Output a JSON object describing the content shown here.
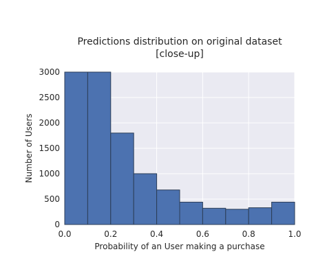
{
  "chart_data": {
    "type": "bar",
    "title_lines": [
      "Predictions distribution on original dataset",
      "[close-up]"
    ],
    "xlabel": "Probability of an User making a purchase",
    "ylabel": "Number of Users",
    "xlim": [
      0.0,
      1.0
    ],
    "ylim": [
      0,
      3000
    ],
    "x_ticks": [
      0.0,
      0.2,
      0.4,
      0.6,
      0.8,
      1.0
    ],
    "x_tick_labels": [
      "0.0",
      "0.2",
      "0.4",
      "0.6",
      "0.8",
      "1.0"
    ],
    "y_ticks": [
      0,
      500,
      1000,
      1500,
      2000,
      2500,
      3000
    ],
    "y_tick_labels": [
      "0",
      "500",
      "1000",
      "1500",
      "2000",
      "2500",
      "3000"
    ],
    "bin_edges": [
      0.0,
      0.1,
      0.2,
      0.3,
      0.4,
      0.5,
      0.6,
      0.7,
      0.8,
      0.9,
      1.0
    ],
    "values": [
      3000,
      3000,
      1800,
      1000,
      680,
      440,
      320,
      300,
      330,
      440
    ],
    "grid": true,
    "colors": {
      "bar_fill": "#4c72b0",
      "bar_edge": "#2c3e57",
      "plot_background": "#eaeaf2",
      "grid": "#ffffff"
    }
  }
}
